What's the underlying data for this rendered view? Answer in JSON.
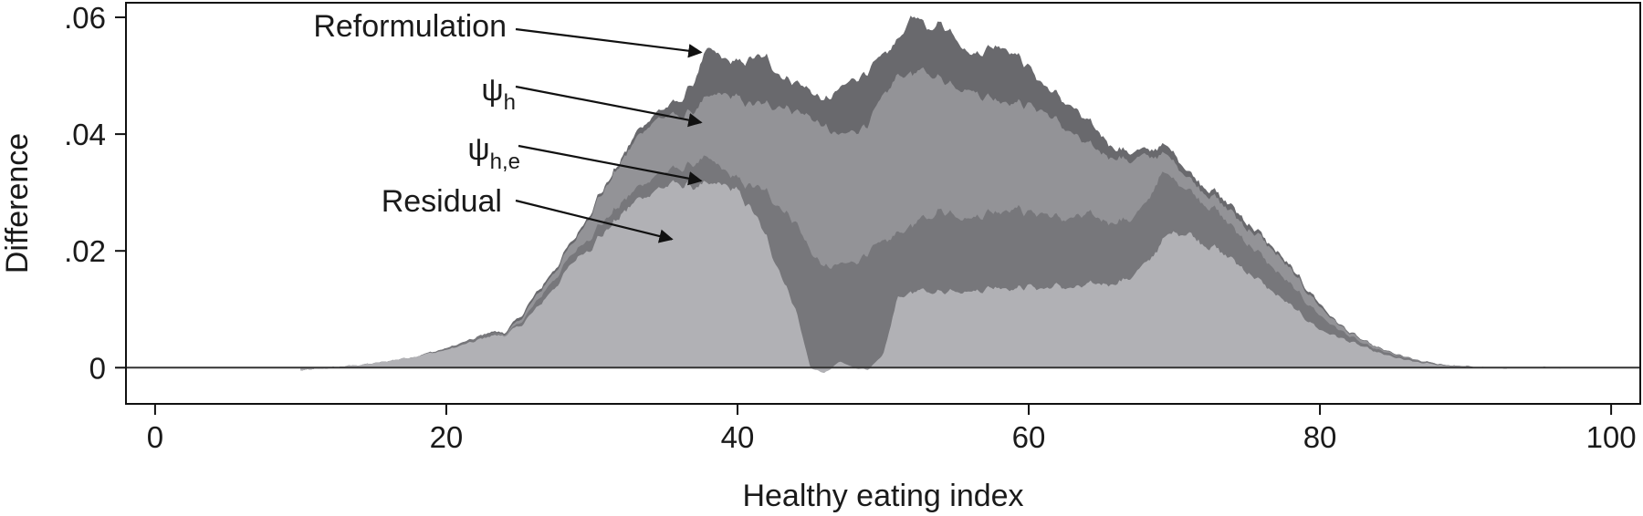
{
  "chart_data": {
    "type": "area",
    "xlabel": "Healthy eating index",
    "ylabel": "Difference",
    "xlim": [
      -2,
      102
    ],
    "ylim": [
      -0.0062,
      0.0625
    ],
    "x_ticks": [
      0,
      20,
      40,
      60,
      80,
      100
    ],
    "x_tick_labels": [
      "0",
      "20",
      "40",
      "60",
      "80",
      "100"
    ],
    "y_ticks": [
      0,
      0.02,
      0.04,
      0.06
    ],
    "y_tick_labels": [
      "0",
      ".02",
      ".04",
      ".06"
    ],
    "grid": false,
    "legend": "none",
    "x": [
      10,
      15,
      18,
      20,
      22,
      23,
      24,
      25,
      26,
      27,
      28,
      29,
      30,
      31,
      32,
      33,
      34,
      35,
      36,
      37,
      38,
      39,
      40,
      41,
      42,
      43,
      44,
      45,
      46,
      47,
      48,
      49,
      50,
      51,
      52,
      53,
      54,
      55,
      56,
      57,
      58,
      59,
      60,
      61,
      62,
      63,
      64,
      65,
      66,
      67,
      68,
      69,
      70,
      71,
      72,
      73,
      74,
      75,
      76,
      77,
      78,
      79,
      80,
      81,
      82,
      83,
      84,
      85,
      86,
      87,
      88,
      89,
      90,
      92,
      94,
      96.5
    ],
    "series": [
      {
        "name": "Residual",
        "color": "#b1b1b5",
        "values": [
          -0.0005,
          0.0007,
          0.002,
          0.003,
          0.0045,
          0.0055,
          0.0055,
          0.007,
          0.0095,
          0.0125,
          0.0155,
          0.019,
          0.021,
          0.0235,
          0.026,
          0.0285,
          0.03,
          0.031,
          0.0315,
          0.031,
          0.031,
          0.0315,
          0.03,
          0.027,
          0.022,
          0.016,
          0.01,
          0.0,
          -0.001,
          0.001,
          0.0,
          -0.0003,
          0.002,
          0.012,
          0.013,
          0.013,
          0.013,
          0.0135,
          0.013,
          0.0135,
          0.014,
          0.0135,
          0.014,
          0.0135,
          0.014,
          0.0135,
          0.014,
          0.0145,
          0.0145,
          0.0155,
          0.0175,
          0.021,
          0.0235,
          0.023,
          0.0215,
          0.02,
          0.0185,
          0.0165,
          0.0145,
          0.0125,
          0.0105,
          0.0085,
          0.0065,
          0.0055,
          0.0045,
          0.0035,
          0.0025,
          0.0018,
          0.0012,
          0.0008,
          0.0005,
          0.0003,
          0.0001,
          0.0,
          0.0,
          0.0
        ]
      },
      {
        "name": "ψh,e",
        "color": "#77777b",
        "values": [
          -0.0005,
          0.0007,
          0.002,
          0.0033,
          0.005,
          0.006,
          0.0055,
          0.0075,
          0.0105,
          0.014,
          0.017,
          0.0205,
          0.023,
          0.0255,
          0.028,
          0.0305,
          0.0325,
          0.0335,
          0.034,
          0.035,
          0.0355,
          0.034,
          0.032,
          0.031,
          0.03,
          0.0275,
          0.025,
          0.02,
          0.017,
          0.0175,
          0.018,
          0.02,
          0.021,
          0.023,
          0.0245,
          0.0255,
          0.027,
          0.0265,
          0.0255,
          0.0265,
          0.027,
          0.0275,
          0.0265,
          0.0265,
          0.0255,
          0.0255,
          0.026,
          0.0255,
          0.025,
          0.0255,
          0.0275,
          0.033,
          0.0325,
          0.0305,
          0.0285,
          0.0265,
          0.024,
          0.0215,
          0.019,
          0.0165,
          0.014,
          0.0115,
          0.009,
          0.007,
          0.0055,
          0.004,
          0.003,
          0.0022,
          0.0015,
          0.001,
          0.0007,
          0.0004,
          0.0002,
          0.0,
          0.0,
          0.0
        ]
      },
      {
        "name": "ψh",
        "color": "#939397",
        "values": [
          -0.0005,
          0.0007,
          0.002,
          0.0033,
          0.005,
          0.006,
          0.0057,
          0.008,
          0.0115,
          0.015,
          0.0185,
          0.0225,
          0.027,
          0.031,
          0.035,
          0.039,
          0.042,
          0.043,
          0.043,
          0.044,
          0.046,
          0.047,
          0.046,
          0.045,
          0.045,
          0.045,
          0.044,
          0.043,
          0.041,
          0.0395,
          0.0405,
          0.042,
          0.046,
          0.05,
          0.0505,
          0.0505,
          0.0495,
          0.0485,
          0.0475,
          0.0465,
          0.046,
          0.0455,
          0.045,
          0.044,
          0.042,
          0.04,
          0.038,
          0.037,
          0.036,
          0.0355,
          0.036,
          0.0365,
          0.0355,
          0.0325,
          0.0305,
          0.0285,
          0.0265,
          0.024,
          0.022,
          0.0195,
          0.0165,
          0.0135,
          0.0105,
          0.008,
          0.006,
          0.0045,
          0.0033,
          0.0024,
          0.0016,
          0.0011,
          0.0007,
          0.0004,
          0.0002,
          0.0,
          0.0,
          0.0
        ]
      },
      {
        "name": "Reformulation",
        "color": "#69696d",
        "values": [
          -0.0005,
          0.0007,
          0.002,
          0.0033,
          0.005,
          0.0062,
          0.006,
          0.0085,
          0.012,
          0.0155,
          0.019,
          0.023,
          0.0275,
          0.0315,
          0.0355,
          0.04,
          0.043,
          0.0445,
          0.0455,
          0.049,
          0.0545,
          0.053,
          0.052,
          0.053,
          0.053,
          0.05,
          0.049,
          0.0475,
          0.0455,
          0.0475,
          0.0495,
          0.051,
          0.053,
          0.056,
          0.0605,
          0.058,
          0.059,
          0.057,
          0.0535,
          0.0545,
          0.0555,
          0.054,
          0.0515,
          0.0485,
          0.0465,
          0.0445,
          0.042,
          0.04,
          0.0375,
          0.037,
          0.037,
          0.038,
          0.037,
          0.0335,
          0.0315,
          0.0295,
          0.0275,
          0.025,
          0.0225,
          0.02,
          0.017,
          0.014,
          0.011,
          0.0082,
          0.0062,
          0.0046,
          0.0034,
          0.0025,
          0.0017,
          0.0011,
          0.0007,
          0.0004,
          0.0002,
          0.0,
          0.0,
          0.0
        ]
      }
    ],
    "annotations": [
      {
        "label": "Reformulation",
        "sub": "",
        "target": [
          37.5,
          0.054
        ]
      },
      {
        "label": "ψ",
        "sub": "h",
        "target": [
          37.5,
          0.042
        ]
      },
      {
        "label": "ψ",
        "sub": "h,e",
        "target": [
          37.5,
          0.032
        ]
      },
      {
        "label": "Residual",
        "sub": "",
        "target": [
          35.5,
          0.022
        ]
      }
    ],
    "zero_line": true
  }
}
